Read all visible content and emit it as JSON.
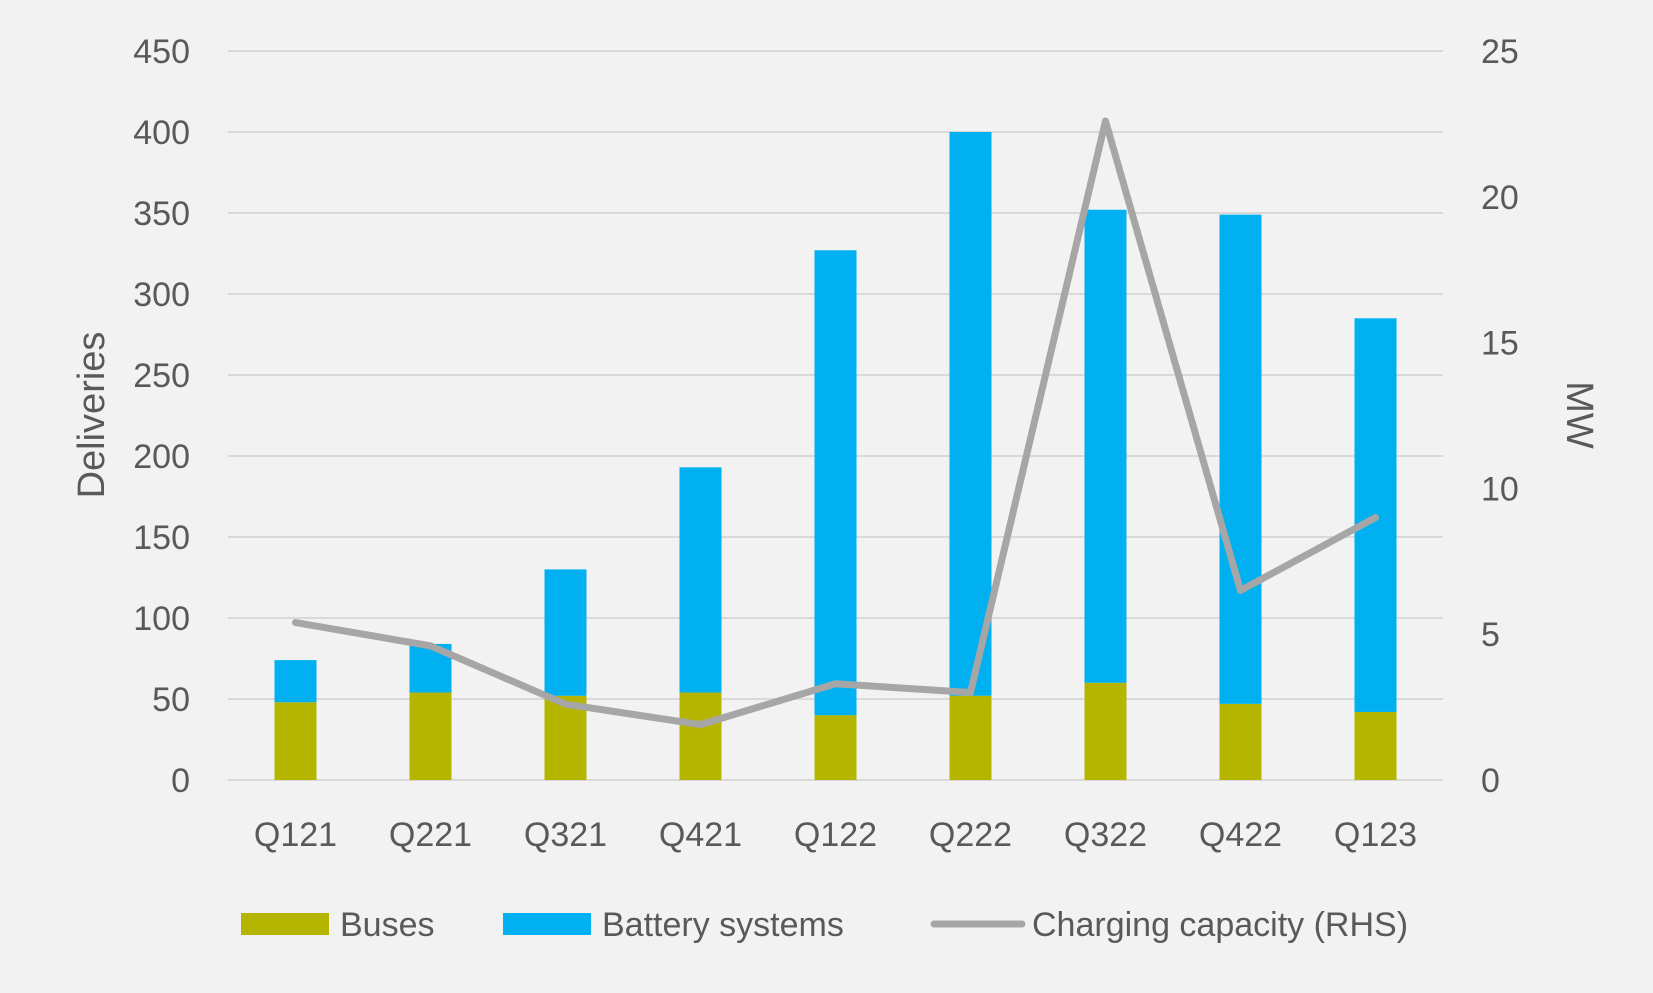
{
  "chart_data": {
    "type": "bar",
    "stacked": true,
    "categories": [
      "Q121",
      "Q221",
      "Q321",
      "Q421",
      "Q122",
      "Q222",
      "Q322",
      "Q422",
      "Q123"
    ],
    "series": [
      {
        "name": "Buses",
        "type": "bar",
        "axis": "left",
        "color": "#b5b500",
        "values": [
          48,
          54,
          52,
          54,
          40,
          52,
          60,
          47,
          42
        ]
      },
      {
        "name": "Battery systems",
        "type": "bar",
        "axis": "left",
        "color": "#00b0f0",
        "values": [
          26,
          30,
          78,
          139,
          287,
          348,
          292,
          302,
          243
        ]
      },
      {
        "name": "Charging capacity (RHS)",
        "type": "line",
        "axis": "right",
        "color": "#a6a6a6",
        "values": [
          5.4,
          4.6,
          2.6,
          1.9,
          3.3,
          3.0,
          22.6,
          6.5,
          9.0
        ]
      }
    ],
    "ylabel": "Deliveries",
    "y2label": "MW",
    "ylim": [
      0,
      450
    ],
    "y_ticks": [
      "0",
      "50",
      "100",
      "150",
      "200",
      "250",
      "300",
      "350",
      "400",
      "450"
    ],
    "y2lim": [
      0,
      25
    ],
    "y2_ticks": [
      "0",
      "5",
      "10",
      "15",
      "20",
      "25"
    ],
    "grid": true,
    "legend_position": "bottom"
  }
}
